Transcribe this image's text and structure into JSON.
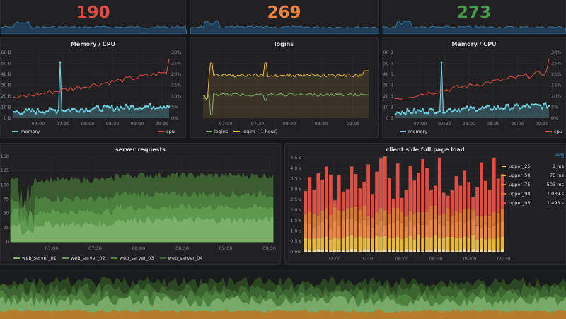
{
  "stats": [
    {
      "value": "190",
      "color": "#e24d42"
    },
    {
      "value": "269",
      "color": "#ef843c"
    },
    {
      "value": "273",
      "color": "#3fa047"
    }
  ],
  "panels": {
    "memory_cpu_left": {
      "title": "Memory / CPU"
    },
    "logins": {
      "title": "logins"
    },
    "memory_cpu_right": {
      "title": "Memory / CPU"
    },
    "server_requests": {
      "title": "server requests"
    },
    "client_load": {
      "title": "client side full page load"
    }
  },
  "legends": {
    "memory": "memory",
    "cpu": "cpu",
    "logins": "logins",
    "logins_prev": "logins (-1 hour)",
    "servers": [
      "web_server_01",
      "web_server_02",
      "web_server_03",
      "web_server_04"
    ],
    "latency_header": "avg",
    "latency": [
      {
        "name": "upper_25",
        "value": "2 ms",
        "color": "#f4d598"
      },
      {
        "name": "upper_50",
        "value": "75 ms",
        "color": "#eab839"
      },
      {
        "name": "upper_75",
        "value": "503 ms",
        "color": "#ef843c"
      },
      {
        "name": "upper_90",
        "value": "1.039 s",
        "color": "#e0752d"
      },
      {
        "name": "upper_95",
        "value": "1.493 s",
        "color": "#e24d42"
      }
    ]
  },
  "colors": {
    "memory": "#6ed0e0",
    "cpu": "#e24d42",
    "logins": "#7eb26d",
    "logins_prev": "#eab839",
    "servers": [
      "#7eb26d",
      "#629e51",
      "#508642",
      "#3f6833"
    ]
  },
  "axes": {
    "time_ticks_6": [
      "07:00",
      "07:30",
      "08:00",
      "08:30",
      "09:00",
      "09:30"
    ],
    "time_ticks_5": [
      "07:00",
      "07:30",
      "08:00",
      "08:30",
      "09:00"
    ],
    "memory_y": [
      "0 B",
      "10 B",
      "20 B",
      "30 B",
      "40 B",
      "50 B",
      "60 B"
    ],
    "cpu_y": [
      "0%",
      "5%",
      "10%",
      "15%",
      "20%",
      "25%",
      "30%"
    ],
    "requests_y": [
      "0",
      "25",
      "50",
      "75",
      "100",
      "125",
      "150"
    ],
    "latency_y": [
      "0 ms",
      "0.5 s",
      "1.0 s",
      "1.5 s",
      "2.0 s",
      "2.5 s",
      "3.0 s",
      "3.5 s",
      "4.0 s",
      "4.5 s"
    ]
  }
}
